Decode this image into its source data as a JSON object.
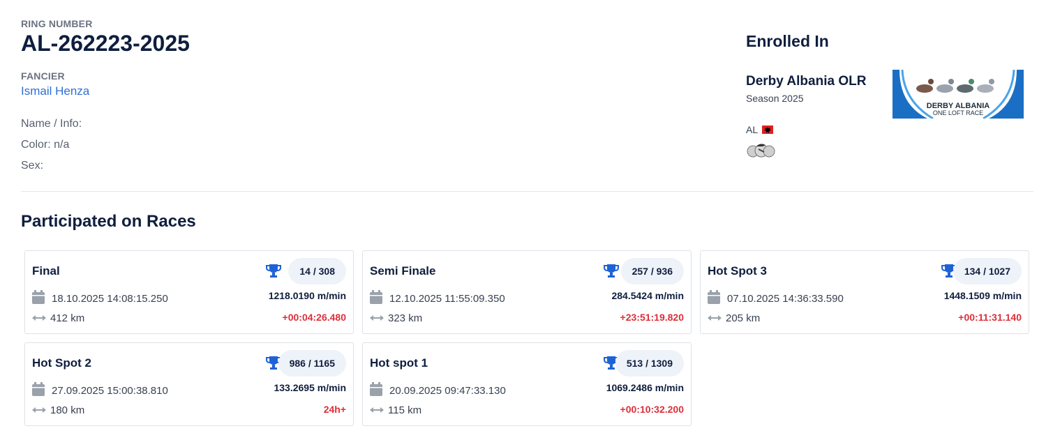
{
  "bird": {
    "ring_label": "RING NUMBER",
    "ring_number": "AL-262223-2025",
    "fancier_label": "FANCIER",
    "fancier_name": "Ismail Henza",
    "name_info": "Name / Info:",
    "color": "Color: n/a",
    "sex": "Sex:"
  },
  "enrolled": {
    "heading": "Enrolled In",
    "race_name": "Derby Albania OLR",
    "season": "Season 2025",
    "country_code": "AL",
    "logo_line1": "DERBY ALBANIA",
    "logo_line2": "ONE LOFT RACE",
    "brand_color": "#1a6fc4"
  },
  "races_heading": "Participated on Races",
  "colors": {
    "accent": "#1e63d6",
    "time_diff": "#dc2f3a",
    "rank_bg": "#eef2f9"
  },
  "races": [
    {
      "name": "Final",
      "rank": "14 / 308",
      "date": "18.10.2025 14:08:15.250",
      "speed": "1218.0190 m/min",
      "distance": "412 km",
      "diff": "+00:04:26.480"
    },
    {
      "name": "Semi Finale",
      "rank": "257 / 936",
      "date": "12.10.2025 11:55:09.350",
      "speed": "284.5424 m/min",
      "distance": "323 km",
      "diff": "+23:51:19.820"
    },
    {
      "name": "Hot Spot 3",
      "rank": "134 / 1027",
      "date": "07.10.2025 14:36:33.590",
      "speed": "1448.1509 m/min",
      "distance": "205 km",
      "diff": "+00:11:31.140"
    },
    {
      "name": "Hot Spot 2",
      "rank": "986 / 1165",
      "date": "27.09.2025 15:00:38.810",
      "speed": "133.2695 m/min",
      "distance": "180 km",
      "diff": "24h+"
    },
    {
      "name": "Hot spot 1",
      "rank": "513 / 1309",
      "date": "20.09.2025 09:47:33.130",
      "speed": "1069.2486 m/min",
      "distance": "115 km",
      "diff": "+00:10:32.200"
    }
  ]
}
